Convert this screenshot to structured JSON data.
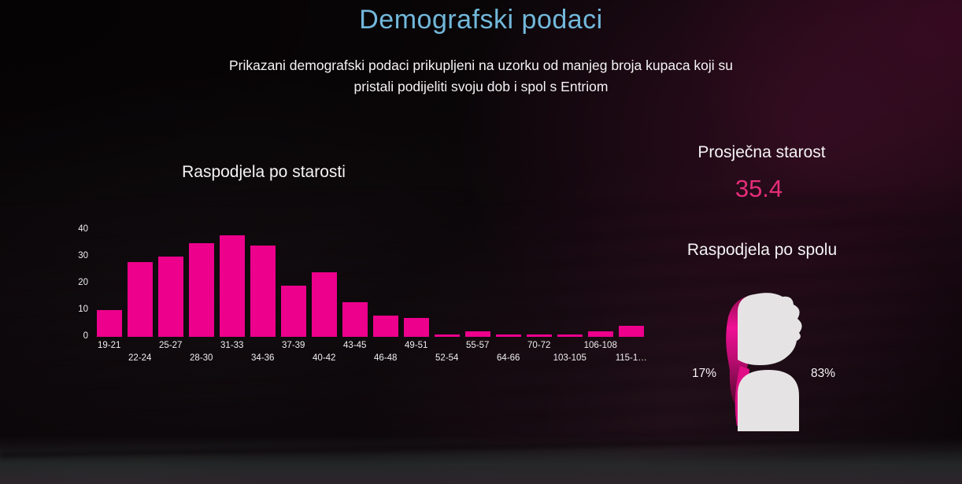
{
  "page": {
    "title": "Demografski podaci",
    "subtitle_line1": "Prikazani demografski podaci prikupljeni na uzorku od manjeg broja kupaca koji su",
    "subtitle_line2": "pristali podijeliti svoju dob i spol s Entriom"
  },
  "colors": {
    "title_blue": "#72b8db",
    "bar_pink": "#ec008c",
    "avg_value_pink": "#e52d78",
    "text_white": "#f3f1f2",
    "male_icon_gray": "#e6e3e4",
    "female_icon_pink": "#ee0f92"
  },
  "avg_age": {
    "label": "Prosječna starost",
    "value": "35.4"
  },
  "gender": {
    "title": "Raspodjela po spolu",
    "female_pct": "17%",
    "male_pct": "83%",
    "female_icon": "female-silhouette-icon",
    "male_icon": "male-silhouette-icon"
  },
  "chart_data": {
    "type": "bar",
    "title": "Raspodjela po starosti",
    "categories": [
      "19-21",
      "22-24",
      "25-27",
      "28-30",
      "31-33",
      "34-36",
      "37-39",
      "40-42",
      "43-45",
      "46-48",
      "49-51",
      "52-54",
      "55-57",
      "64-66",
      "70-72",
      "103-105",
      "106-108",
      "115-1…"
    ],
    "values": [
      10,
      28,
      30,
      35,
      38,
      34,
      19,
      24,
      13,
      8,
      7,
      1,
      2,
      1,
      1,
      1,
      2,
      4
    ],
    "ylim": [
      0,
      40
    ],
    "yticks": [
      0,
      10,
      20,
      30,
      40
    ],
    "bar_color": "#ec008c",
    "grid": false,
    "legend": false,
    "xlabel_rows": "staggered"
  }
}
